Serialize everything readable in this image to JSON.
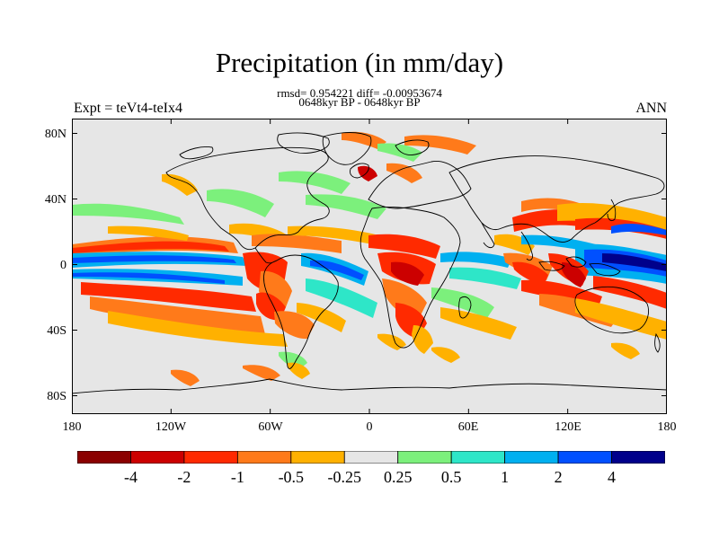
{
  "title": "Precipitation (in mm/day)",
  "stats_line": "rmsd= 0.954221 diff= -0.00953674",
  "period_line": "0648kyr BP - 0648kyr BP",
  "left_label": "Expt = teVt4-teIx4",
  "right_label": "ANN",
  "axes": {
    "x_ticks": [
      "180",
      "120W",
      "60W",
      "0",
      "60E",
      "120E",
      "180"
    ],
    "y_ticks": [
      "80N",
      "40N",
      "0",
      "40S",
      "80S"
    ]
  },
  "colorbar": {
    "labels": [
      "-4",
      "-2",
      "-1",
      "-0.5",
      "-0.25",
      "0.25",
      "0.5",
      "1",
      "2",
      "4"
    ],
    "colors": [
      "#8b0000",
      "#cc0000",
      "#ff2a00",
      "#ff7a1a",
      "#ffb100",
      "#e6e6e6",
      "#7cf07c",
      "#2ee6c8",
      "#00b0f0",
      "#0050ff",
      "#00008b"
    ]
  },
  "map_style": {
    "background": "#e6e6e6",
    "coastline": "#000000"
  }
}
